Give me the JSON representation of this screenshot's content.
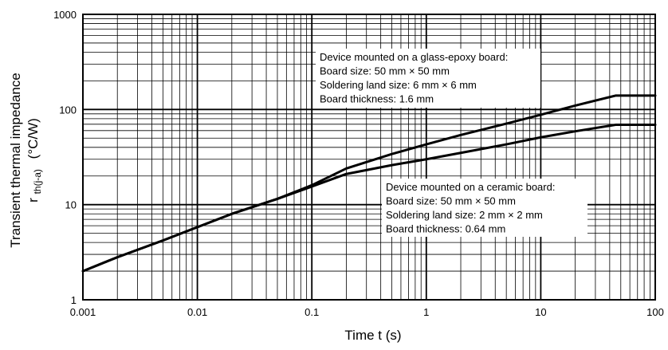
{
  "chart_data": {
    "type": "line",
    "xscale": "log",
    "yscale": "log",
    "xlim": [
      0.001,
      100
    ],
    "ylim": [
      1,
      1000
    ],
    "grid": true,
    "xlabel": "Time  t  (s)",
    "ylabel": {
      "line1": "Transient thermal impedance",
      "symbol": "r",
      "subscript": "th(j-a)",
      "unit": "(°C/W)"
    },
    "xticks": [
      {
        "value": 0.001,
        "label": "0.001"
      },
      {
        "value": 0.01,
        "label": "0.01"
      },
      {
        "value": 0.1,
        "label": "0.1"
      },
      {
        "value": 1,
        "label": "1"
      },
      {
        "value": 10,
        "label": "10"
      },
      {
        "value": 100,
        "label": "100"
      }
    ],
    "yticks": [
      {
        "value": 1,
        "label": "1"
      },
      {
        "value": 10,
        "label": "10"
      },
      {
        "value": 100,
        "label": "100"
      },
      {
        "value": 1000,
        "label": "1000"
      }
    ],
    "series": [
      {
        "color": "#000000",
        "x": [
          0.001,
          0.002,
          0.005,
          0.01,
          0.02,
          0.05,
          0.1,
          0.2,
          0.5,
          1,
          2,
          5,
          10,
          20,
          45,
          100
        ],
        "y": [
          2.0,
          2.8,
          4.2,
          5.8,
          8.0,
          11.5,
          16,
          24,
          34,
          43,
          54,
          71,
          88,
          110,
          140,
          140
        ]
      },
      {
        "color": "#000000",
        "x": [
          0.001,
          0.002,
          0.005,
          0.01,
          0.02,
          0.05,
          0.1,
          0.2,
          0.5,
          1,
          2,
          5,
          10,
          20,
          45,
          100
        ],
        "y": [
          2.0,
          2.8,
          4.2,
          5.8,
          8.0,
          11.5,
          15.5,
          21,
          26,
          30,
          35,
          43,
          51,
          59,
          69,
          69
        ]
      }
    ],
    "annotations": [
      {
        "id": "glass",
        "lines": [
          "Device mounted on a glass-epoxy board:",
          "Board size: 50 mm × 50 mm",
          "Soldering land size: 6 mm × 6 mm",
          "Board thickness: 1.6 mm"
        ]
      },
      {
        "id": "ceramic",
        "lines": [
          "Device mounted on a ceramic board:",
          "Board size: 50 mm × 50 mm",
          "Soldering land size: 2 mm × 2 mm",
          "Board thickness: 0.64 mm"
        ]
      }
    ]
  }
}
